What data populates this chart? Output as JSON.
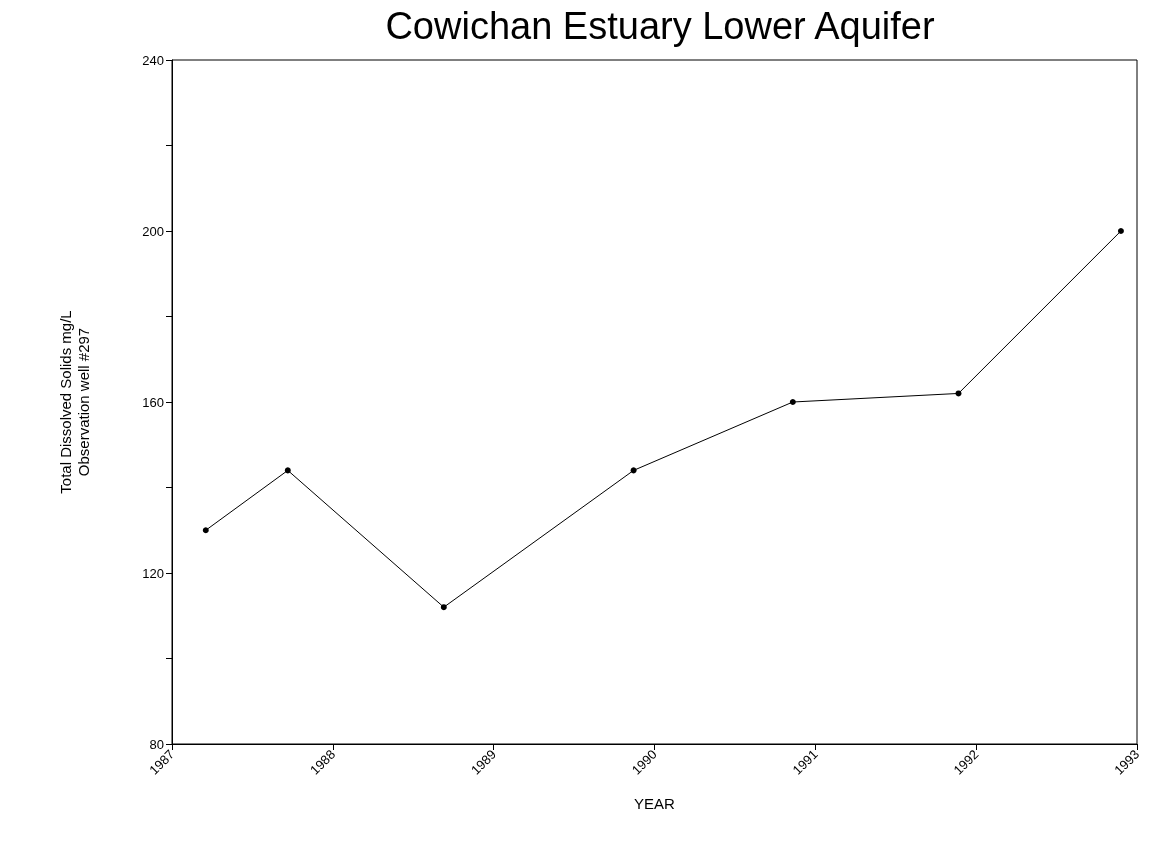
{
  "chart_data": {
    "type": "line",
    "title": "Cowichan Estuary Lower Aquifer",
    "xlabel": "YEAR",
    "ylabel": "Total Dissolved Solids mg/L\nObservation well #297",
    "x": [
      1987.21,
      1987.72,
      1988.69,
      1989.87,
      1990.86,
      1991.89,
      1992.9
    ],
    "values": [
      130,
      144,
      112,
      144,
      160,
      162,
      200
    ],
    "color": "#000000",
    "xlim": [
      1987,
      1993
    ],
    "xticks": [
      1987,
      1988,
      1989,
      1990,
      1991,
      1992,
      1993
    ],
    "ylim": [
      80,
      240
    ],
    "yticks": [
      80,
      {
        "value": 100,
        "label": null
      },
      120,
      {
        "value": 140,
        "label": null
      },
      160,
      {
        "value": 180,
        "label": null
      },
      200,
      {
        "value": 220,
        "label": null
      },
      240
    ],
    "grid": false,
    "marker": "circle",
    "line_style": "solid"
  }
}
